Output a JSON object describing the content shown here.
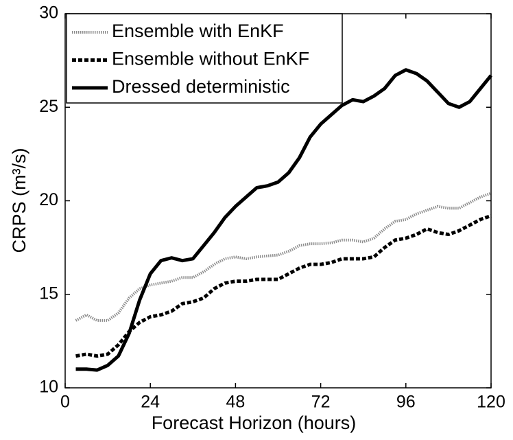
{
  "chart_data": {
    "type": "line",
    "xlabel": "Forecast Horizon (hours)",
    "ylabel": "CRPS (m³/s)",
    "x": [
      3,
      6,
      9,
      12,
      15,
      18,
      21,
      24,
      27,
      30,
      33,
      36,
      39,
      42,
      45,
      48,
      51,
      54,
      57,
      60,
      63,
      66,
      69,
      72,
      75,
      78,
      81,
      84,
      87,
      90,
      93,
      96,
      99,
      102,
      105,
      108,
      111,
      114,
      117,
      120
    ],
    "series": [
      {
        "name": "Ensemble with EnKF",
        "color": "#8c8c8c",
        "style": "dotted",
        "values": [
          13.6,
          13.9,
          13.6,
          13.6,
          14.0,
          14.8,
          15.3,
          15.5,
          15.6,
          15.7,
          15.9,
          15.9,
          16.2,
          16.6,
          16.9,
          17.0,
          16.9,
          17.0,
          17.05,
          17.1,
          17.3,
          17.6,
          17.7,
          17.7,
          17.75,
          17.9,
          17.9,
          17.8,
          18.0,
          18.5,
          18.9,
          19.0,
          19.3,
          19.5,
          19.7,
          19.6,
          19.6,
          19.9,
          20.2,
          20.4
        ]
      },
      {
        "name": "Ensemble without EnKF",
        "color": "#000000",
        "style": "dashed",
        "values": [
          11.7,
          11.8,
          11.7,
          11.8,
          12.3,
          13.0,
          13.5,
          13.8,
          13.9,
          14.1,
          14.5,
          14.6,
          14.8,
          15.3,
          15.6,
          15.7,
          15.7,
          15.8,
          15.8,
          15.8,
          16.1,
          16.4,
          16.6,
          16.6,
          16.7,
          16.9,
          16.9,
          16.9,
          17.0,
          17.5,
          17.9,
          18.0,
          18.2,
          18.5,
          18.3,
          18.2,
          18.4,
          18.7,
          19.0,
          19.2
        ]
      },
      {
        "name": "Dressed deterministic",
        "color": "#000000",
        "style": "solid",
        "values": [
          11.0,
          11.0,
          10.95,
          11.2,
          11.7,
          12.9,
          14.7,
          16.1,
          16.8,
          16.95,
          16.8,
          16.9,
          17.6,
          18.3,
          19.1,
          19.7,
          20.2,
          20.7,
          20.8,
          21.0,
          21.5,
          22.3,
          23.4,
          24.1,
          24.6,
          25.1,
          25.4,
          25.3,
          25.6,
          26.0,
          26.7,
          27.0,
          26.8,
          26.4,
          25.8,
          25.2,
          25.0,
          25.3,
          26.0,
          26.7
        ]
      }
    ],
    "xlim": [
      0,
      120
    ],
    "xticks": [
      0,
      24,
      48,
      72,
      96,
      120
    ],
    "ylim": [
      10,
      30
    ],
    "yticks": [
      10,
      15,
      20,
      25,
      30
    ],
    "legend": "upper-left"
  }
}
